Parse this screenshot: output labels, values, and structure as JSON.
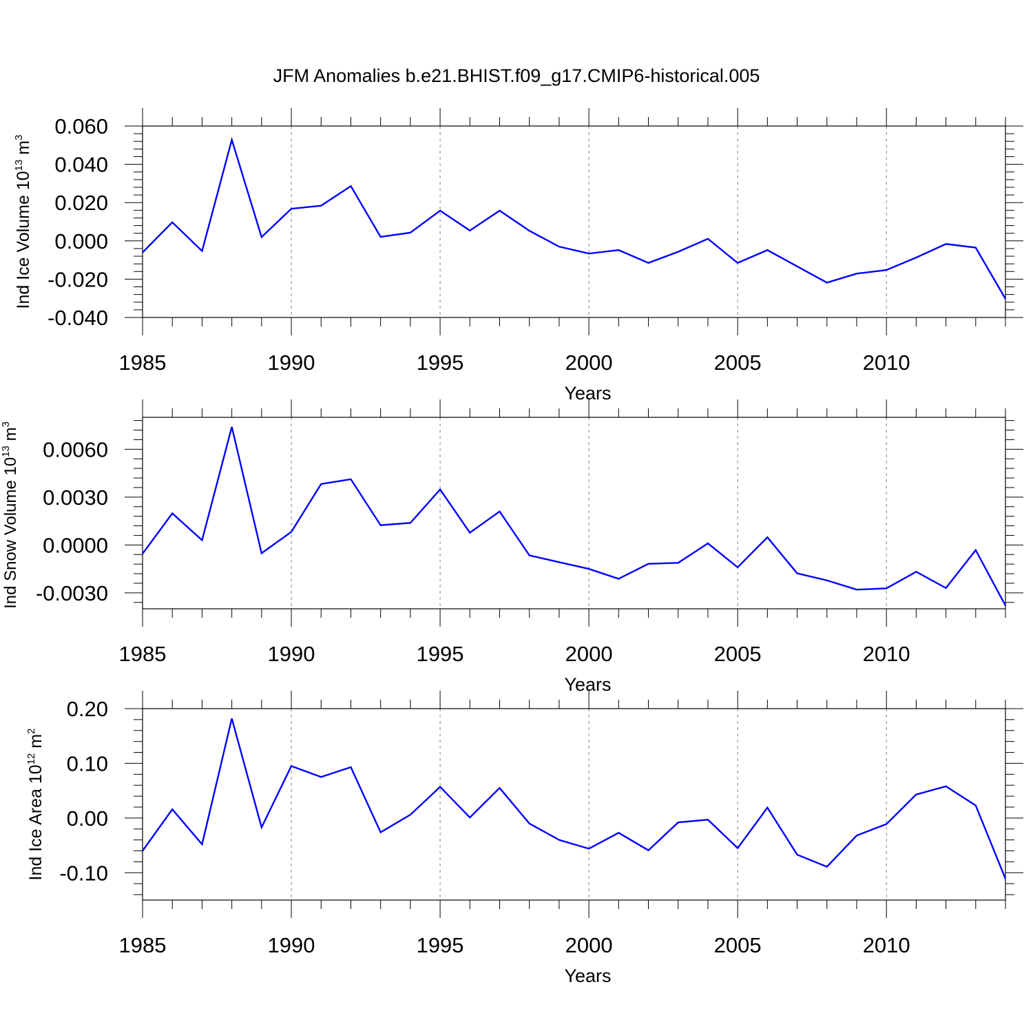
{
  "title": "JFM Anomalies b.e21.BHIST.f09_g17.CMIP6-historical.005",
  "line_color": "#0000ff",
  "grid_color": "#7f7f7f",
  "chart_data": [
    {
      "type": "line",
      "ylabel": {
        "text": "Ind Ice Volume 10",
        "sup": "13",
        "unit": " m",
        "unit_sup": "3"
      },
      "xlabel": "Years",
      "grid": "vertical dashed at major x ticks",
      "xlim": [
        1985,
        2014
      ],
      "ylim": [
        -0.04,
        0.06
      ],
      "x_ticks": [
        1985,
        1990,
        1995,
        2000,
        2005,
        2010
      ],
      "x_tick_labels": [
        "1985",
        "1990",
        "1995",
        "2000",
        "2005",
        "2010"
      ],
      "y_ticks": [
        -0.04,
        -0.02,
        0.0,
        0.02,
        0.04,
        0.06
      ],
      "y_tick_labels": [
        "-0.040",
        "-0.020",
        "0.000",
        "0.020",
        "0.040",
        "0.060"
      ],
      "x": [
        1985,
        1986,
        1987,
        1988,
        1989,
        1990,
        1991,
        1992,
        1993,
        1994,
        1995,
        1996,
        1997,
        1998,
        1999,
        2000,
        2001,
        2002,
        2003,
        2004,
        2005,
        2006,
        2007,
        2008,
        2009,
        2010,
        2011,
        2012,
        2013,
        2014
      ],
      "series": [
        {
          "values": [
            -0.006,
            0.0097,
            -0.0053,
            0.0528,
            0.002,
            0.0168,
            0.0184,
            0.0286,
            0.0021,
            0.0043,
            0.0158,
            0.0054,
            0.0158,
            0.0053,
            -0.003,
            -0.0066,
            -0.0048,
            -0.0115,
            -0.0057,
            0.0011,
            -0.0115,
            -0.0048,
            -0.0133,
            -0.0218,
            -0.0171,
            -0.0152,
            -0.0087,
            -0.0016,
            -0.0035,
            -0.0303
          ]
        }
      ]
    },
    {
      "type": "line",
      "ylabel": {
        "text": "Ind Snow Volume 10",
        "sup": "13",
        "unit": " m",
        "unit_sup": "3"
      },
      "xlabel": "Years",
      "grid": "vertical dashed at major x ticks",
      "xlim": [
        1985,
        2014
      ],
      "ylim": [
        -0.004,
        0.008
      ],
      "x_ticks": [
        1985,
        1990,
        1995,
        2000,
        2005,
        2010
      ],
      "x_tick_labels": [
        "1985",
        "1990",
        "1995",
        "2000",
        "2005",
        "2010"
      ],
      "y_ticks": [
        -0.003,
        0.0,
        0.003,
        0.006
      ],
      "y_tick_labels": [
        "-0.0030",
        "0.0000",
        "0.0030",
        "0.0060"
      ],
      "x": [
        1985,
        1986,
        1987,
        1988,
        1989,
        1990,
        1991,
        1992,
        1993,
        1994,
        1995,
        1996,
        1997,
        1998,
        1999,
        2000,
        2001,
        2002,
        2003,
        2004,
        2005,
        2006,
        2007,
        2008,
        2009,
        2010,
        2011,
        2012,
        2013,
        2014
      ],
      "series": [
        {
          "values": [
            -0.00055,
            0.00198,
            0.0003,
            0.0074,
            -0.00052,
            0.00082,
            0.00382,
            0.00412,
            0.00124,
            0.00138,
            0.00348,
            0.00077,
            0.0021,
            -0.00065,
            -0.00108,
            -0.0015,
            -0.00212,
            -0.00118,
            -0.00112,
            0.0001,
            -0.0014,
            0.00048,
            -0.00178,
            -0.00222,
            -0.0028,
            -0.00272,
            -0.00168,
            -0.0027,
            -0.00032,
            -0.0038
          ]
        }
      ]
    },
    {
      "type": "line",
      "ylabel": {
        "text": "Ind Ice Area 10",
        "sup": "12",
        "unit": " m",
        "unit_sup": "2"
      },
      "xlabel": "Years",
      "grid": "vertical dashed at major x ticks",
      "xlim": [
        1985,
        2014
      ],
      "ylim": [
        -0.15,
        0.2
      ],
      "x_ticks": [
        1985,
        1990,
        1995,
        2000,
        2005,
        2010
      ],
      "x_tick_labels": [
        "1985",
        "1990",
        "1995",
        "2000",
        "2005",
        "2010"
      ],
      "y_ticks": [
        -0.1,
        0.0,
        0.1,
        0.2
      ],
      "y_tick_labels": [
        "-0.10",
        "0.00",
        "0.10",
        "0.20"
      ],
      "x": [
        1985,
        1986,
        1987,
        1988,
        1989,
        1990,
        1991,
        1992,
        1993,
        1994,
        1995,
        1996,
        1997,
        1998,
        1999,
        2000,
        2001,
        2002,
        2003,
        2004,
        2005,
        2006,
        2007,
        2008,
        2009,
        2010,
        2011,
        2012,
        2013,
        2014
      ],
      "series": [
        {
          "values": [
            -0.06,
            0.016,
            -0.048,
            0.182,
            -0.017,
            0.095,
            0.075,
            0.093,
            -0.026,
            0.006,
            0.057,
            0.001,
            0.055,
            -0.01,
            -0.04,
            -0.056,
            -0.027,
            -0.059,
            -0.008,
            -0.003,
            -0.055,
            0.019,
            -0.067,
            -0.089,
            -0.032,
            -0.011,
            0.043,
            0.058,
            0.023,
            -0.111
          ]
        }
      ]
    }
  ]
}
